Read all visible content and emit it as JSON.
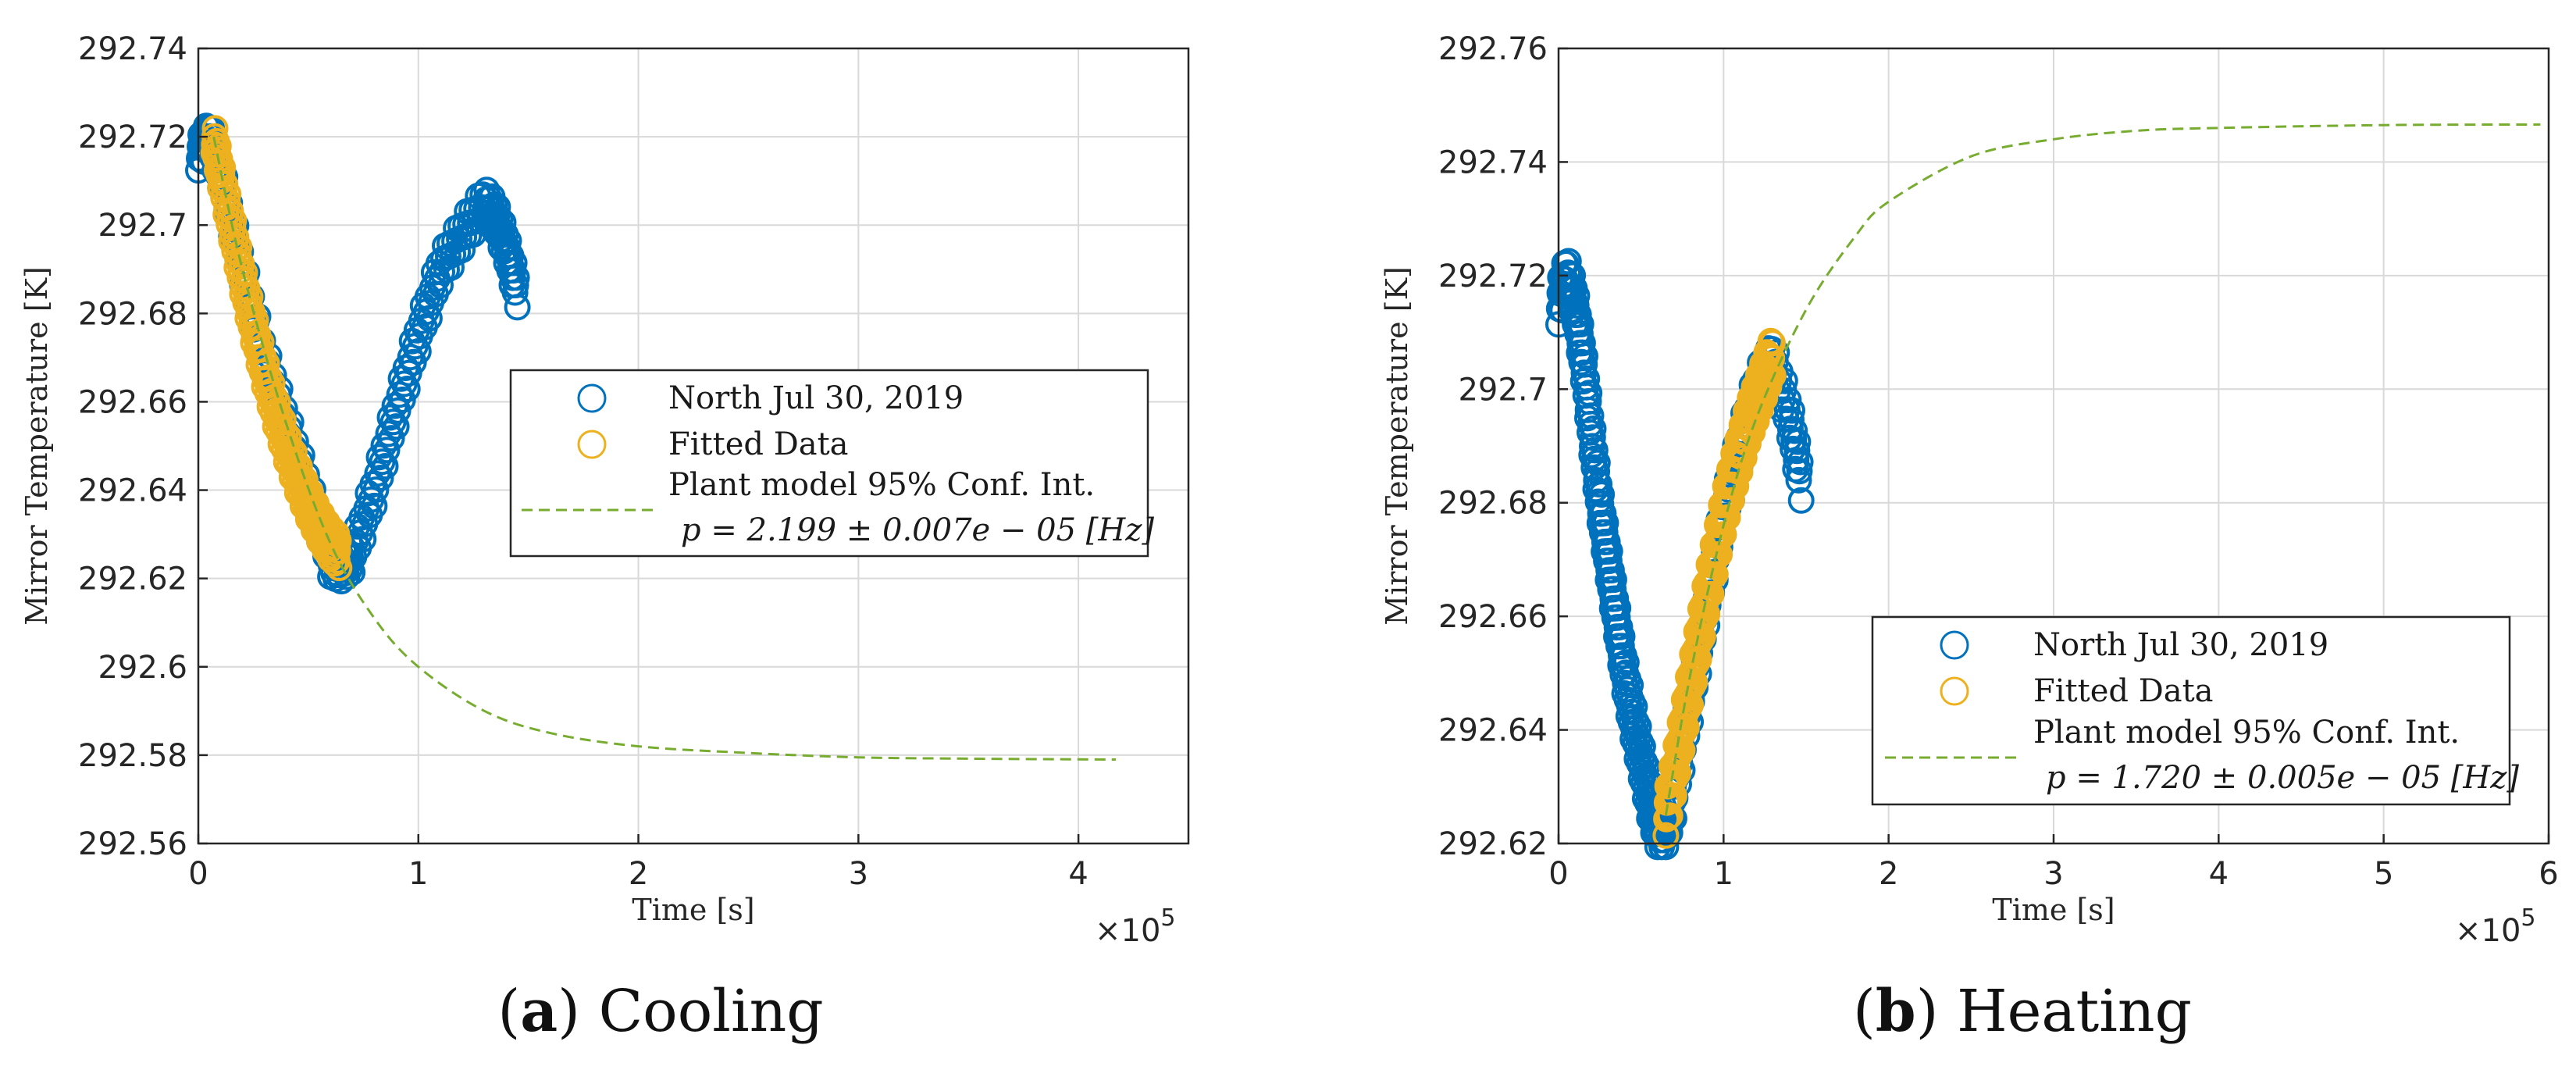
{
  "chart_data": [
    {
      "type": "scatter",
      "panel_label": "a",
      "caption": "Cooling",
      "xlabel": "Time [s]",
      "ylabel": "Mirror Temperature [K]",
      "x_exponent_label": "×10",
      "x_exponent": "5",
      "xlim": [
        0,
        4.5
      ],
      "ylim": [
        292.56,
        292.74
      ],
      "xticks": [
        0,
        1,
        2,
        3,
        4
      ],
      "xtick_labels": [
        "0",
        "1",
        "2",
        "3",
        "4"
      ],
      "yticks": [
        292.56,
        292.58,
        292.6,
        292.62,
        292.64,
        292.66,
        292.68,
        292.7,
        292.72,
        292.74
      ],
      "ytick_labels": [
        "292.56",
        "292.58",
        "292.6",
        "292.62",
        "292.64",
        "292.66",
        "292.68",
        "292.7",
        "292.72",
        "292.74"
      ],
      "grid": true,
      "legend_position": "center-right",
      "series": [
        {
          "name": "North Jul 30, 2019",
          "kind": "markers",
          "color": "#0072bd",
          "x": [
            0.0,
            0.05,
            0.1,
            0.2,
            0.3,
            0.4,
            0.5,
            0.6,
            0.65,
            0.7,
            0.8,
            0.9,
            1.0,
            1.1,
            1.2,
            1.3,
            1.35,
            1.4,
            1.45
          ],
          "y": [
            292.716,
            292.72,
            292.712,
            292.69,
            292.67,
            292.655,
            292.64,
            292.624,
            292.623,
            292.625,
            292.64,
            292.658,
            292.675,
            292.69,
            292.698,
            292.705,
            292.702,
            292.695,
            292.685
          ]
        },
        {
          "name": "Fitted Data",
          "kind": "markers",
          "color": "#edb120",
          "x": [
            0.07,
            0.1,
            0.15,
            0.2,
            0.25,
            0.3,
            0.35,
            0.4,
            0.45,
            0.5,
            0.55,
            0.6,
            0.64
          ],
          "y": [
            292.72,
            292.712,
            292.7,
            292.688,
            292.677,
            292.667,
            292.658,
            292.65,
            292.643,
            292.637,
            292.632,
            292.628,
            292.626
          ]
        },
        {
          "name": "Plant model 95% Conf. Int.",
          "name_line2": "p = 2.199 ± 0.007e − 05 [Hz]",
          "kind": "dashed-line",
          "color": "#77ac30",
          "x": [
            0.07,
            0.2,
            0.4,
            0.6,
            0.8,
            1.0,
            1.3,
            1.6,
            2.0,
            2.5,
            3.0,
            3.5,
            4.17
          ],
          "y": [
            292.72,
            292.69,
            292.655,
            292.628,
            292.611,
            292.6,
            292.59,
            292.585,
            292.582,
            292.5805,
            292.5795,
            292.5792,
            292.579
          ]
        }
      ]
    },
    {
      "type": "scatter",
      "panel_label": "b",
      "caption": "Heating",
      "xlabel": "Time [s]",
      "ylabel": "Mirror Temperature [K]",
      "x_exponent_label": "×10",
      "x_exponent": "5",
      "xlim": [
        0,
        6
      ],
      "ylim": [
        292.62,
        292.76
      ],
      "xticks": [
        0,
        1,
        2,
        3,
        4,
        5,
        6
      ],
      "xtick_labels": [
        "0",
        "1",
        "2",
        "3",
        "4",
        "5",
        "6"
      ],
      "yticks": [
        292.62,
        292.64,
        292.66,
        292.68,
        292.7,
        292.72,
        292.74,
        292.76
      ],
      "ytick_labels": [
        "292.62",
        "292.64",
        "292.66",
        "292.68",
        "292.7",
        "292.72",
        "292.74",
        "292.76"
      ],
      "grid": true,
      "legend_position": "bottom-right",
      "series": [
        {
          "name": "North Jul 30, 2019",
          "kind": "markers",
          "color": "#0072bd",
          "x": [
            0.0,
            0.05,
            0.1,
            0.15,
            0.2,
            0.25,
            0.3,
            0.35,
            0.4,
            0.45,
            0.5,
            0.55,
            0.6,
            0.65,
            0.7,
            0.8,
            0.9,
            1.0,
            1.1,
            1.2,
            1.3,
            1.4,
            1.47
          ],
          "y": [
            292.715,
            292.72,
            292.715,
            292.705,
            292.692,
            292.68,
            292.67,
            292.66,
            292.65,
            292.642,
            292.635,
            292.628,
            292.623,
            292.623,
            292.628,
            292.645,
            292.662,
            292.678,
            292.69,
            292.7,
            292.705,
            292.695,
            292.684
          ]
        },
        {
          "name": "Fitted Data",
          "kind": "markers",
          "color": "#edb120",
          "x": [
            0.65,
            0.7,
            0.75,
            0.8,
            0.85,
            0.9,
            0.95,
            1.0,
            1.05,
            1.1,
            1.15,
            1.2,
            1.25,
            1.3
          ],
          "y": [
            292.625,
            292.632,
            292.64,
            292.648,
            292.656,
            292.664,
            292.671,
            292.678,
            292.684,
            292.689,
            292.694,
            292.698,
            292.702,
            292.706
          ]
        },
        {
          "name": "Plant model 95% Conf. Int.",
          "name_line2": "p = 1.720 ± 0.005e − 05 [Hz]",
          "kind": "dashed-line",
          "color": "#77ac30",
          "x": [
            0.65,
            0.8,
            1.0,
            1.2,
            1.5,
            1.8,
            2.0,
            2.5,
            3.0,
            3.5,
            4.0,
            5.0,
            5.95
          ],
          "y": [
            292.625,
            292.65,
            292.676,
            292.695,
            292.714,
            292.727,
            292.733,
            292.741,
            292.744,
            292.7455,
            292.746,
            292.7465,
            292.7466
          ]
        }
      ]
    }
  ]
}
